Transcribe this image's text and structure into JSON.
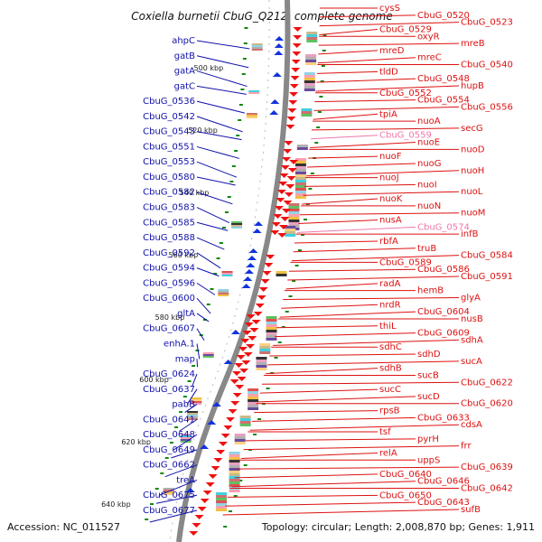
{
  "title": "Coxiella burnetii CbuG_Q212, complete genome",
  "accession": "Accession: NC_011527",
  "topology": "Topology: circular; Length: 2,008,870 bp; Genes: 1,911",
  "colors": {
    "left_labels": "#1111aa",
    "right_labels": "#dd1111",
    "pink_labels": "#ee77aa",
    "backbone": "#888888",
    "tick": "#118811",
    "arrow_minus": "#1133dd",
    "arrow_plus": "#ee1111"
  },
  "scale_ticks": [
    "500 kbp",
    "520 kbp",
    "540 kbp",
    "560 kbp",
    "580 kbp",
    "600 kbp",
    "620 kbp",
    "640 kbp"
  ],
  "left_genes": [
    "ahpC",
    "gatB",
    "gatA",
    "gatC",
    "CbuG_0536",
    "CbuG_0542",
    "CbuG_0543",
    "CbuG_0551",
    "CbuG_0553",
    "CbuG_0580",
    "CbuG_0582",
    "CbuG_0583",
    "CbuG_0585",
    "CbuG_0588",
    "CbuG_0592",
    "CbuG_0594",
    "CbuG_0596",
    "CbuG_0600",
    "gltA",
    "CbuG_0607",
    "enhA.1",
    "map",
    "CbuG_0624",
    "CbuG_0637",
    "pabB",
    "CbuG_0641",
    "CbuG_0648",
    "CbuG_0649",
    "CbuG_0662",
    "treA",
    "CbuG_0675",
    "CbuG_0677"
  ],
  "right_genes": [
    "cysS",
    "CbuG_0520",
    "CbuG_0523",
    "CbuG_0529",
    "oxyR",
    "mreB",
    "mreD",
    "mreC",
    "CbuG_0540",
    "tldD",
    "CbuG_0548",
    "hupB",
    "CbuG_0552",
    "CbuG_0554",
    "CbuG_0556",
    "tpiA",
    "nuoA",
    "secG",
    "CbuG_0559",
    "nuoE",
    "nuoD",
    "nuoF",
    "nuoG",
    "nuoH",
    "nuoJ",
    "nuoI",
    "nuoL",
    "nuoK",
    "nuoN",
    "nuoM",
    "nusA",
    "CbuG_0574",
    "infB",
    "rbfA",
    "truB",
    "CbuG_0584",
    "CbuG_0589",
    "CbuG_0586",
    "CbuG_0591",
    "radA",
    "hemB",
    "glyA",
    "nrdR",
    "CbuG_0604",
    "nusB",
    "thiL",
    "CbuG_0609",
    "sdhA",
    "sdhC",
    "sdhD",
    "sucA",
    "sdhB",
    "sucB",
    "CbuG_0622",
    "sucC",
    "sucD",
    "CbuG_0620",
    "rpsB",
    "CbuG_0633",
    "cdsA",
    "tsf",
    "pyrH",
    "frr",
    "relA",
    "uppS",
    "CbuG_0639",
    "CbuG_0640",
    "CbuG_0646",
    "CbuG_0642",
    "CbuG_0650",
    "CbuG_0643",
    "sufB"
  ]
}
